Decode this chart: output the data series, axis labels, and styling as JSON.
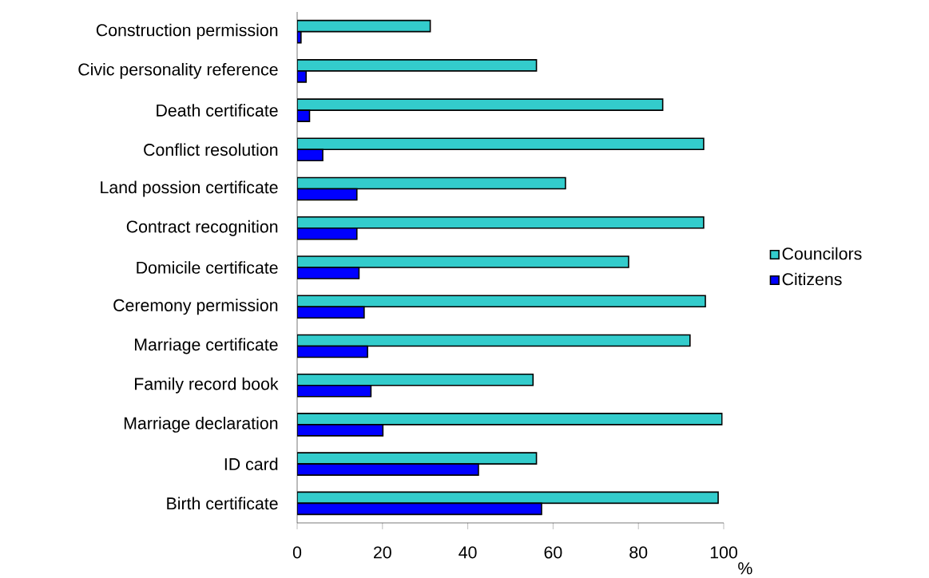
{
  "chart_data": {
    "type": "bar",
    "orientation": "horizontal",
    "xlabel": "%",
    "categories": [
      "Construction permission",
      "Civic personality reference",
      "Death certificate",
      "Conflict resolution",
      "Land possion certificate",
      "Contract recognition",
      "Domicile certificate",
      "Ceremony permission",
      "Marriage certificate",
      "Family record book",
      "Marriage declaration",
      "ID card",
      "Birth certificate"
    ],
    "series": [
      {
        "name": "Councilors",
        "color": "#33cccc",
        "values": [
          31.2,
          56.1,
          85.7,
          95.3,
          62.9,
          95.3,
          77.7,
          95.7,
          92.1,
          55.3,
          99.6,
          56.1,
          98.7
        ]
      },
      {
        "name": "Citizens",
        "color": "#0000ff",
        "values": [
          0.9,
          2.1,
          2.9,
          6.0,
          14.0,
          14.0,
          14.5,
          15.7,
          16.5,
          17.3,
          20.1,
          42.5,
          57.3
        ]
      }
    ],
    "xlim": [
      0,
      100
    ],
    "xticks": [
      0,
      20,
      40,
      60,
      80,
      100
    ],
    "grid": false,
    "legend": "right"
  }
}
